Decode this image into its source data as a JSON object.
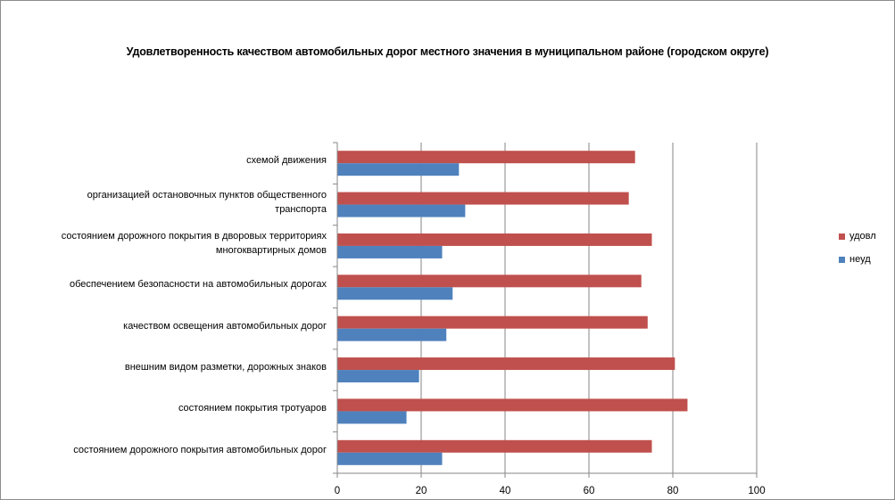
{
  "chart_data": {
    "type": "bar",
    "orientation": "horizontal",
    "title": "Удовлетворенность качеством автомобильных дорог местного значения в  муниципальном районе (городском округе)",
    "categories": [
      "схемой движения",
      "организацией остановочных пунктов общественного транспорта",
      "состоянием дорожного покрытия  в дворовых территориях многоквартирных домов",
      "обеспечением  безопасности на автомобильных дорогах",
      "качеством  освещения  автомобильных дорог",
      "внешним  видом разметки, дорожных знаков",
      "состоянием покрытия тротуаров",
      "состоянием дорожного покрытия автомобильных дорог"
    ],
    "category_lines": [
      [
        "схемой движения"
      ],
      [
        "организацией остановочных пунктов общественного",
        "транспорта"
      ],
      [
        "состоянием дорожного покрытия  в дворовых территориях",
        "многоквартирных домов"
      ],
      [
        "обеспечением  безопасности на автомобильных дорогах"
      ],
      [
        "качеством  освещения  автомобильных дорог"
      ],
      [
        "внешним  видом разметки, дорожных знаков"
      ],
      [
        "состоянием покрытия тротуаров"
      ],
      [
        "состоянием дорожного покрытия автомобильных дорог"
      ]
    ],
    "series": [
      {
        "name": "удовл",
        "color": "#c0504d",
        "values": [
          71,
          69.5,
          75,
          72.5,
          74,
          80.5,
          83.5,
          75
        ]
      },
      {
        "name": "неуд",
        "color": "#4f81bd",
        "values": [
          29,
          30.5,
          25,
          27.5,
          26,
          19.5,
          16.5,
          25
        ]
      }
    ],
    "xlim": [
      0,
      100
    ],
    "xticks": [
      "0",
      "20",
      "40",
      "60",
      "80",
      "100"
    ],
    "grid": true,
    "legend_position": "right"
  }
}
